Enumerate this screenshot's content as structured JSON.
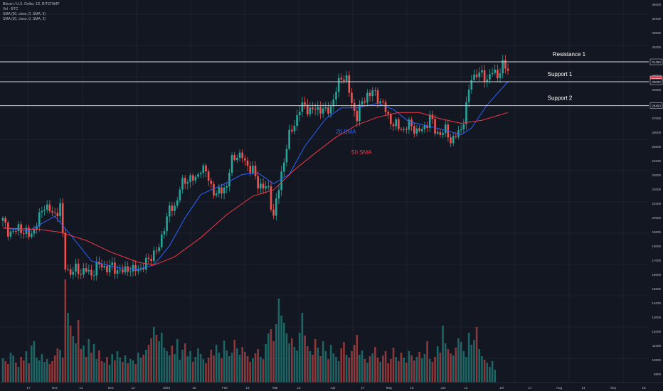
{
  "header": {
    "symbol_line": "Bitcoin / U.S. Dollar, 1D, BITSTAMP",
    "vol_line": "Vol · BTC",
    "sma1_line": "SMA (50, close, 0, SMA, 5)",
    "sma2_line": "SMA (20, close, 0, SMA, 5)"
  },
  "colors": {
    "background": "#131722",
    "up": "#26a69a",
    "down": "#ef5350",
    "sma20": "#2962ff",
    "sma50": "#f23645",
    "level": "#d1d4dc"
  },
  "chart_data": {
    "type": "candlestick",
    "x_ticks": [
      "17",
      "Nov",
      "14",
      "Dec",
      "12",
      "2023",
      "16",
      "Feb",
      "13",
      "Mar",
      "13",
      "Apr",
      "17",
      "May",
      "15",
      "Jun",
      "12",
      "Jul",
      "17",
      "Aug",
      "14",
      "Sep",
      "18"
    ],
    "y_ticks": [
      "35000",
      "34000",
      "33000",
      "32000",
      "31000",
      "30000",
      "29000",
      "28000",
      "27000",
      "26000",
      "25000",
      "24000",
      "23000",
      "22000",
      "21000",
      "20000",
      "19000",
      "18000",
      "17000",
      "16000",
      "15000",
      "14000",
      "13000",
      "12000",
      "11000",
      "10000",
      "9500"
    ],
    "price_labels": {
      "resistance_1": "31450",
      "current": "30830",
      "support_1": "30000",
      "support_2": "28450"
    },
    "price_path": [
      [
        0,
        20200
      ],
      [
        2,
        19500
      ],
      [
        4,
        19300
      ],
      [
        6,
        19800
      ],
      [
        8,
        19400
      ],
      [
        10,
        19200
      ],
      [
        12,
        19600
      ],
      [
        14,
        20400
      ],
      [
        16,
        21300
      ],
      [
        18,
        20800
      ],
      [
        20,
        20600
      ],
      [
        22,
        21200
      ],
      [
        24,
        16900
      ],
      [
        26,
        16400
      ],
      [
        28,
        16700
      ],
      [
        30,
        16500
      ],
      [
        32,
        16600
      ],
      [
        34,
        16300
      ],
      [
        36,
        16900
      ],
      [
        38,
        17000
      ],
      [
        40,
        16700
      ],
      [
        42,
        16900
      ],
      [
        44,
        16600
      ],
      [
        46,
        16500
      ],
      [
        48,
        16800
      ],
      [
        50,
        16600
      ],
      [
        52,
        16700
      ],
      [
        54,
        16900
      ],
      [
        56,
        17400
      ],
      [
        58,
        17900
      ],
      [
        60,
        18200
      ],
      [
        62,
        19900
      ],
      [
        64,
        20900
      ],
      [
        66,
        21100
      ],
      [
        68,
        22300
      ],
      [
        70,
        22800
      ],
      [
        72,
        23000
      ],
      [
        74,
        22800
      ],
      [
        76,
        23700
      ],
      [
        78,
        23300
      ],
      [
        80,
        22500
      ],
      [
        82,
        21800
      ],
      [
        84,
        22300
      ],
      [
        86,
        22400
      ],
      [
        88,
        24300
      ],
      [
        90,
        24600
      ],
      [
        92,
        24400
      ],
      [
        94,
        23800
      ],
      [
        96,
        23400
      ],
      [
        98,
        22600
      ],
      [
        100,
        22400
      ],
      [
        102,
        22200
      ],
      [
        104,
        20500
      ],
      [
        106,
        22300
      ],
      [
        108,
        24200
      ],
      [
        110,
        26400
      ],
      [
        112,
        27300
      ],
      [
        114,
        28200
      ],
      [
        116,
        28500
      ],
      [
        118,
        28100
      ],
      [
        120,
        28200
      ],
      [
        122,
        28300
      ],
      [
        124,
        28000
      ],
      [
        126,
        28400
      ],
      [
        128,
        29400
      ],
      [
        130,
        30400
      ],
      [
        132,
        30200
      ],
      [
        134,
        28500
      ],
      [
        136,
        27800
      ],
      [
        138,
        28600
      ],
      [
        140,
        29200
      ],
      [
        142,
        29300
      ],
      [
        144,
        29000
      ],
      [
        146,
        28500
      ],
      [
        148,
        27700
      ],
      [
        150,
        27300
      ],
      [
        152,
        27000
      ],
      [
        154,
        26900
      ],
      [
        156,
        27200
      ],
      [
        158,
        26900
      ],
      [
        160,
        26700
      ],
      [
        162,
        27000
      ],
      [
        164,
        27800
      ],
      [
        166,
        26700
      ],
      [
        168,
        26500
      ],
      [
        170,
        26800
      ],
      [
        172,
        25900
      ],
      [
        174,
        26300
      ],
      [
        176,
        26900
      ],
      [
        178,
        28400
      ],
      [
        180,
        30300
      ],
      [
        182,
        30600
      ],
      [
        184,
        30500
      ],
      [
        186,
        30200
      ],
      [
        188,
        30700
      ],
      [
        190,
        30500
      ],
      [
        192,
        31200
      ],
      [
        194,
        30830
      ]
    ],
    "sma20": [
      [
        0,
        19700
      ],
      [
        10,
        19500
      ],
      [
        20,
        20500
      ],
      [
        26,
        19200
      ],
      [
        34,
        17300
      ],
      [
        44,
        16800
      ],
      [
        52,
        16700
      ],
      [
        58,
        17000
      ],
      [
        64,
        18400
      ],
      [
        70,
        20400
      ],
      [
        76,
        21900
      ],
      [
        84,
        22500
      ],
      [
        92,
        23200
      ],
      [
        98,
        23300
      ],
      [
        104,
        22600
      ],
      [
        110,
        23200
      ],
      [
        116,
        25400
      ],
      [
        124,
        27600
      ],
      [
        130,
        28300
      ],
      [
        136,
        28300
      ],
      [
        144,
        28600
      ],
      [
        150,
        28200
      ],
      [
        156,
        27400
      ],
      [
        164,
        27100
      ],
      [
        170,
        26800
      ],
      [
        176,
        26400
      ],
      [
        180,
        27000
      ],
      [
        186,
        28500
      ],
      [
        194,
        30000
      ]
    ],
    "sma50": [
      [
        0,
        19700
      ],
      [
        14,
        19600
      ],
      [
        22,
        19400
      ],
      [
        32,
        18800
      ],
      [
        42,
        17900
      ],
      [
        52,
        17200
      ],
      [
        58,
        17000
      ],
      [
        66,
        17600
      ],
      [
        76,
        19000
      ],
      [
        86,
        20600
      ],
      [
        96,
        21800
      ],
      [
        104,
        22200
      ],
      [
        112,
        23500
      ],
      [
        120,
        24800
      ],
      [
        128,
        26200
      ],
      [
        136,
        27200
      ],
      [
        144,
        27700
      ],
      [
        152,
        28000
      ],
      [
        160,
        28000
      ],
      [
        168,
        27600
      ],
      [
        176,
        27300
      ],
      [
        184,
        27500
      ],
      [
        194,
        28000
      ]
    ],
    "volume": [
      34,
      30,
      26,
      42,
      38,
      28,
      22,
      36,
      31,
      44,
      27,
      52,
      58,
      35,
      31,
      40,
      29,
      33,
      26,
      30,
      38,
      48,
      46,
      35,
      145,
      98,
      80,
      65,
      55,
      88,
      47,
      52,
      36,
      61,
      42,
      54,
      33,
      45,
      30,
      28,
      36,
      25,
      40,
      31,
      44,
      35,
      29,
      38,
      27,
      33,
      31,
      26,
      42,
      35,
      39,
      46,
      53,
      62,
      78,
      67,
      58,
      70,
      49,
      44,
      38,
      52,
      40,
      61,
      32,
      46,
      55,
      37,
      44,
      29,
      36,
      48,
      40,
      33,
      27,
      35,
      46,
      38,
      53,
      42,
      34,
      59,
      45,
      37,
      42,
      60,
      48,
      39,
      50,
      43,
      37,
      29,
      34,
      41,
      47,
      36,
      33,
      54,
      69,
      75,
      58,
      82,
      118,
      94,
      84,
      69,
      55,
      62,
      50,
      45,
      70,
      98,
      66,
      51,
      44,
      39,
      61,
      49,
      37,
      58,
      44,
      33,
      53,
      41,
      36,
      30,
      48,
      57,
      39,
      35,
      44,
      53,
      67,
      39,
      45,
      33,
      28,
      37,
      41,
      50,
      35,
      29,
      38,
      44,
      27,
      33,
      49,
      36,
      30,
      42,
      35,
      28,
      44,
      38,
      31,
      36,
      43,
      34,
      40,
      58,
      33,
      29,
      36,
      51,
      42,
      80,
      55,
      47,
      41,
      38,
      49,
      62,
      57,
      44,
      36,
      70,
      53,
      60,
      78,
      47,
      37,
      32,
      28,
      22,
      30,
      18
    ],
    "annotations": [
      "20 SMA",
      "50 SMA"
    ],
    "levels": [
      {
        "name": "Resistance 1",
        "price": 31450
      },
      {
        "name": "Support 1",
        "price": 30000
      },
      {
        "name": "Support 2",
        "price": 28450
      }
    ]
  }
}
